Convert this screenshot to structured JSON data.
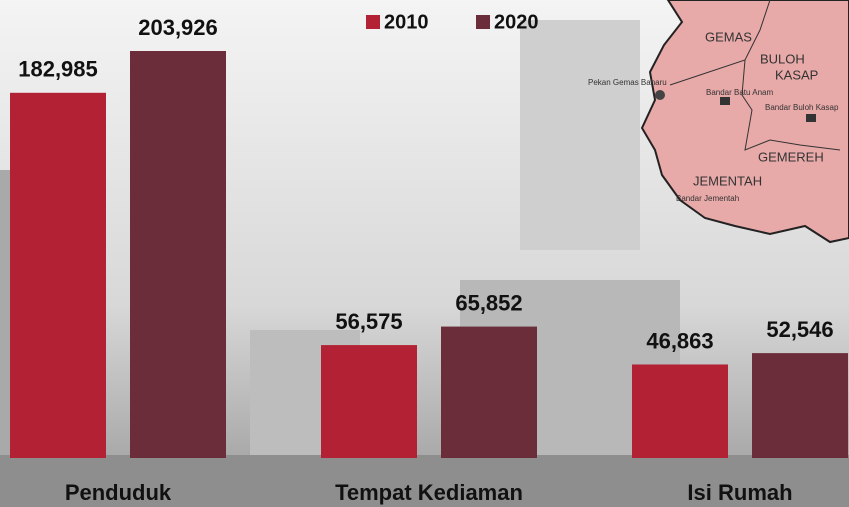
{
  "chart_data": {
    "type": "bar",
    "categories": [
      "Penduduk",
      "Tempat Kediaman",
      "Isi Rumah"
    ],
    "series": [
      {
        "name": "2010",
        "color": "#b22234",
        "values": [
          182985,
          56575,
          46863
        ],
        "value_labels": [
          "182,985",
          "56,575",
          "46,863"
        ]
      },
      {
        "name": "2020",
        "color": "#6b2d3a",
        "values": [
          203926,
          65852,
          52546
        ],
        "value_labels": [
          "203,926",
          "65,852",
          "52,546"
        ]
      }
    ]
  },
  "map": {
    "labels": [
      "GEMAS",
      "BULOH",
      "KASAP",
      "GEMEREH",
      "JEMENTAH",
      "Pekan Gemas Baharu",
      "Bandar Batu Anam",
      "Bandar Buloh Kasap",
      "Bandar Jementah"
    ]
  }
}
